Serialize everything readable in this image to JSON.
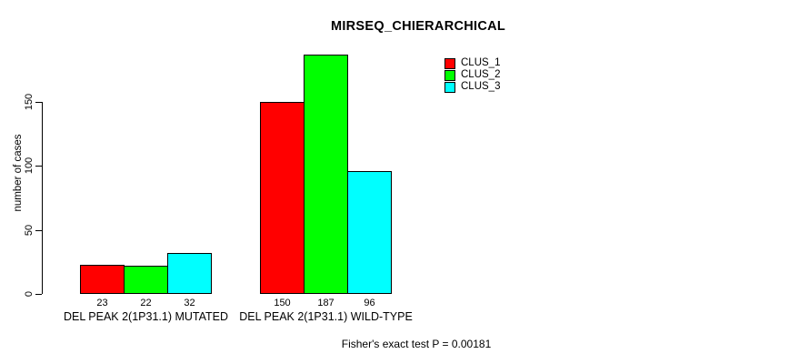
{
  "title": "MIRSEQ_CHIERARCHICAL",
  "annotation": "Fisher's exact test P = 0.00181",
  "chart_data": {
    "type": "bar",
    "title": "MIRSEQ_CHIERARCHICAL",
    "xlabel": "",
    "ylabel": "number of cases",
    "categories": [
      "DEL PEAK 2(1P31.1) MUTATED",
      "DEL PEAK 2(1P31.1) WILD-TYPE"
    ],
    "series": [
      {
        "name": "CLUS_1",
        "color": "#FF0000",
        "values": [
          23,
          150
        ]
      },
      {
        "name": "CLUS_2",
        "color": "#00FF00",
        "values": [
          22,
          187
        ]
      },
      {
        "name": "CLUS_3",
        "color": "#00FFFF",
        "values": [
          32,
          96
        ]
      }
    ],
    "bar_value_labels": [
      [
        "23",
        "22",
        "32"
      ],
      [
        "150",
        "187",
        "96"
      ]
    ],
    "yticks": [
      0,
      50,
      100,
      150
    ],
    "ylim": [
      0,
      190
    ],
    "grid": false,
    "legend_position": "top-right",
    "legend_entries": [
      "CLUS_1",
      "CLUS_2",
      "CLUS_3"
    ],
    "annotation": "Fisher's exact test P = 0.00181",
    "bar_border_color": "#000000",
    "background_color": "#FFFFFF"
  }
}
